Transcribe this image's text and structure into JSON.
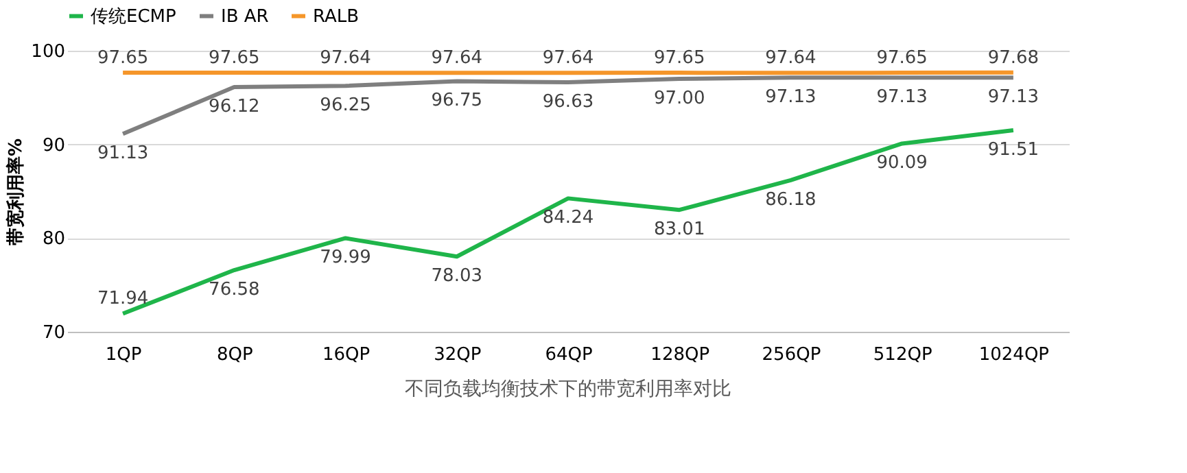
{
  "chart_data": {
    "type": "line",
    "ylabel": "带宽利用率%",
    "categories": [
      "1QP",
      "8QP",
      "16QP",
      "32QP",
      "64QP",
      "128QP",
      "256QP",
      "512QP",
      "1024QP"
    ],
    "series": [
      {
        "name": "传统ECMP",
        "color": "#1fb54a",
        "values": [
          71.94,
          76.58,
          79.99,
          78.03,
          84.24,
          83.01,
          86.18,
          90.09,
          91.51
        ],
        "value_labels": [
          "71.94",
          "76.58",
          "79.99",
          "78.03",
          "84.24",
          "83.01",
          "86.18",
          "90.09",
          "91.51"
        ]
      },
      {
        "name": "IB AR",
        "color": "#7f7f7f",
        "values": [
          91.13,
          96.12,
          96.25,
          96.75,
          96.63,
          97.0,
          97.13,
          97.13,
          97.13
        ],
        "value_labels": [
          "91.13",
          "96.12",
          "96.25",
          "96.75",
          "96.63",
          "97.00",
          "97.13",
          "97.13",
          "97.13"
        ]
      },
      {
        "name": "RALB",
        "color": "#f5962a",
        "values": [
          97.65,
          97.65,
          97.64,
          97.64,
          97.64,
          97.65,
          97.64,
          97.65,
          97.68
        ],
        "value_labels": [
          "97.65",
          "97.65",
          "97.64",
          "97.64",
          "97.64",
          "97.65",
          "97.64",
          "97.65",
          "97.68"
        ]
      }
    ],
    "ylim": [
      70,
      100
    ],
    "yticks": [
      70,
      80,
      90,
      100
    ],
    "grid": "y",
    "legend": "top",
    "marker": "none",
    "line_style": "solid",
    "annotations": [
      "不同负载均衡技术下的带宽利用率对比"
    ]
  }
}
